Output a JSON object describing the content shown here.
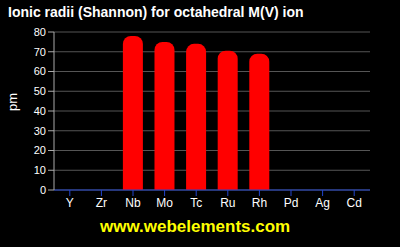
{
  "chart_data": {
    "type": "bar",
    "title": "Ionic radii (Shannon) for octahedral M(V) ion",
    "y_label": "pm",
    "categories": [
      "Y",
      "Zr",
      "Nb",
      "Mo",
      "Tc",
      "Ru",
      "Rh",
      "Pd",
      "Ag",
      "Cd"
    ],
    "values": [
      null,
      null,
      78,
      75,
      74,
      70.5,
      69,
      null,
      null,
      null
    ],
    "color": "#ff0000",
    "ylim": [
      0,
      80
    ],
    "yticks": [
      0,
      10,
      20,
      30,
      40,
      50,
      60,
      70,
      80
    ],
    "grid": true,
    "annotation": "www.webelements.com"
  }
}
